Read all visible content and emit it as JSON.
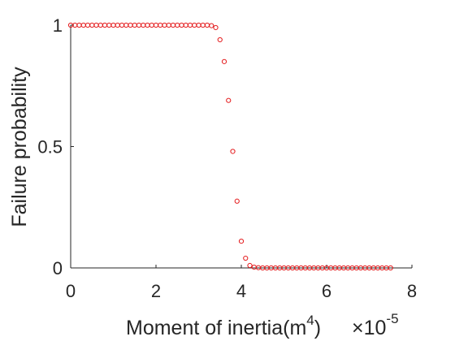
{
  "chart_data": {
    "type": "scatter",
    "xlabel": "Moment of inertia(m",
    "xlabel_superscript": "4",
    "xlabel_suffix": ")",
    "exponent_text": "×10",
    "exponent_power": "-5",
    "ylabel": "Failure probability",
    "xlim": [
      0,
      8
    ],
    "ylim": [
      0,
      1
    ],
    "xticks": [
      "0",
      "2",
      "4",
      "6",
      "8"
    ],
    "yticks": [
      "0",
      "0.5",
      "1"
    ],
    "grid": false,
    "marker": "circle",
    "series_color": "#e41a1c",
    "x": [
      0,
      0.1,
      0.2,
      0.3,
      0.4,
      0.5,
      0.6,
      0.7,
      0.8,
      0.9,
      1.0,
      1.1,
      1.2,
      1.3,
      1.4,
      1.5,
      1.6,
      1.7,
      1.8,
      1.9,
      2.0,
      2.1,
      2.2,
      2.3,
      2.4,
      2.5,
      2.6,
      2.7,
      2.8,
      2.9,
      3.0,
      3.1,
      3.2,
      3.3,
      3.4,
      3.5,
      3.6,
      3.7,
      3.8,
      3.9,
      4.0,
      4.1,
      4.2,
      4.3,
      4.4,
      4.5,
      4.6,
      4.7,
      4.8,
      4.9,
      5.0,
      5.1,
      5.2,
      5.3,
      5.4,
      5.5,
      5.6,
      5.7,
      5.8,
      5.9,
      6.0,
      6.1,
      6.2,
      6.3,
      6.4,
      6.5,
      6.6,
      6.7,
      6.8,
      6.9,
      7.0,
      7.1,
      7.2,
      7.3,
      7.4,
      7.5
    ],
    "y": [
      1,
      1,
      1,
      1,
      1,
      1,
      1,
      1,
      1,
      1,
      1,
      1,
      1,
      1,
      1,
      1,
      1,
      1,
      1,
      1,
      1,
      1,
      1,
      1,
      1,
      1,
      1,
      1,
      1,
      1,
      1,
      1,
      1,
      0.998,
      0.99,
      0.94,
      0.85,
      0.69,
      0.48,
      0.275,
      0.11,
      0.04,
      0.01,
      0.003,
      0.001,
      0,
      0,
      0,
      0,
      0,
      0,
      0,
      0,
      0,
      0,
      0,
      0,
      0,
      0,
      0,
      0,
      0,
      0,
      0,
      0,
      0,
      0,
      0,
      0,
      0,
      0,
      0,
      0,
      0,
      0,
      0
    ]
  }
}
